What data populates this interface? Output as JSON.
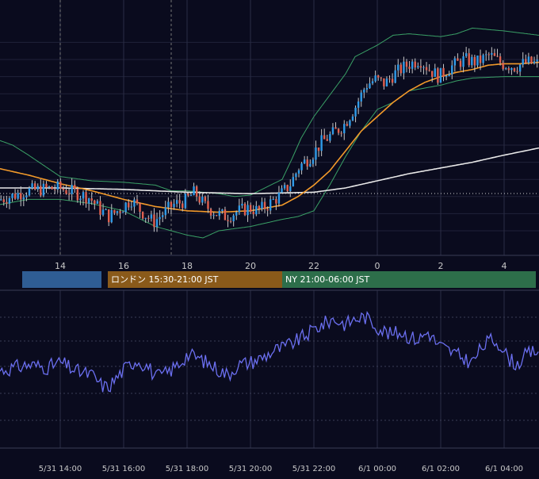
{
  "colors": {
    "background": "#0a0b1e",
    "grid": "#2a2d45",
    "bull": "#2f9be8",
    "bear": "#e0604f",
    "wick": "#c7c7c7",
    "ma_short": "#f39a2a",
    "ma_long": "#e8e8e8",
    "bollinger": "#3aa066",
    "rsi": "#6b6ff0",
    "axis_text": "#c8c8c8"
  },
  "sessions": [
    {
      "name": "tokyo",
      "label": "",
      "color": "#2f5d94",
      "from_h": 12.8,
      "to_h": 15.3
    },
    {
      "name": "london",
      "label": "ロンドン 15:30-21:00 JST",
      "color": "#8a5a1a",
      "from_h": 15.5,
      "to_h": 21.0
    },
    {
      "name": "ny",
      "label": "NY 21:00-06:00 JST",
      "color": "#2d6e4a",
      "from_h": 21.0,
      "to_h": 29.0
    }
  ],
  "chart_data": [
    {
      "type": "line",
      "title": "",
      "xlabel": "",
      "ylabel": "",
      "x_axis": {
        "start_time": "5/31 12:00",
        "end_time": "6/1 05:30",
        "tick_labels": [
          "14",
          "16",
          "18",
          "20",
          "22",
          "0",
          "2",
          "4"
        ],
        "tick_hours": [
          14,
          16,
          18,
          20,
          22,
          24,
          26,
          28
        ]
      },
      "ylim": [
        0,
        100
      ],
      "grid": true,
      "series": [
        {
          "key": "price",
          "kind": "candles",
          "anchors": [
            [
              12,
              51
            ],
            [
              12.5,
              54
            ],
            [
              13,
              58
            ],
            [
              13.5,
              59
            ],
            [
              14,
              60
            ],
            [
              14.5,
              57
            ],
            [
              15,
              53
            ],
            [
              15.3,
              45
            ],
            [
              15.6,
              40
            ],
            [
              16,
              46
            ],
            [
              16.3,
              52
            ],
            [
              16.6,
              44
            ],
            [
              17,
              36
            ],
            [
              17.3,
              42
            ],
            [
              17.6,
              48
            ],
            [
              18,
              51
            ],
            [
              18.3,
              57
            ],
            [
              18.6,
              48
            ],
            [
              19,
              42
            ],
            [
              19.3,
              40
            ],
            [
              19.6,
              43
            ],
            [
              20,
              46
            ],
            [
              20.3,
              44
            ],
            [
              20.6,
              48
            ],
            [
              21,
              55
            ],
            [
              21.3,
              62
            ],
            [
              21.6,
              75
            ],
            [
              22,
              83
            ],
            [
              22.3,
              92
            ],
            [
              22.6,
              97
            ],
            [
              23,
              104
            ],
            [
              23.4,
              118
            ],
            [
              23.7,
              132
            ],
            [
              24,
              136
            ],
            [
              24.3,
              133
            ],
            [
              24.6,
              140
            ],
            [
              25,
              146
            ],
            [
              25.4,
              150
            ],
            [
              25.7,
              143
            ],
            [
              26,
              138
            ],
            [
              26.4,
              145
            ],
            [
              26.8,
              150
            ],
            [
              27.2,
              148
            ],
            [
              27.6,
              153
            ],
            [
              28,
              147
            ],
            [
              28.4,
              145
            ],
            [
              28.8,
              148
            ],
            [
              29.1,
              147
            ]
          ]
        },
        {
          "key": "ma_short",
          "kind": "line",
          "anchors": [
            [
              12,
              74
            ],
            [
              13,
              69
            ],
            [
              14,
              63
            ],
            [
              15,
              58
            ],
            [
              16,
              52
            ],
            [
              17,
              47
            ],
            [
              18,
              44
            ],
            [
              19,
              43
            ],
            [
              20,
              44
            ],
            [
              21,
              48
            ],
            [
              21.5,
              54
            ],
            [
              22,
              62
            ],
            [
              22.5,
              72
            ],
            [
              23,
              86
            ],
            [
              23.5,
              100
            ],
            [
              24,
              110
            ],
            [
              24.5,
              120
            ],
            [
              25,
              128
            ],
            [
              25.5,
              134
            ],
            [
              26,
              138
            ],
            [
              26.5,
              141
            ],
            [
              27,
              143
            ],
            [
              27.5,
              146
            ],
            [
              28,
              147
            ],
            [
              28.5,
              147
            ],
            [
              29.1,
              148
            ]
          ]
        },
        {
          "key": "ma_long",
          "kind": "line",
          "anchors": [
            [
              12,
              60
            ],
            [
              14,
              60
            ],
            [
              16,
              59
            ],
            [
              18,
              57
            ],
            [
              20,
              56
            ],
            [
              22,
              57
            ],
            [
              23,
              60
            ],
            [
              24,
              65
            ],
            [
              25,
              70
            ],
            [
              26,
              74
            ],
            [
              27,
              78
            ],
            [
              28,
              83
            ],
            [
              29.1,
              88
            ]
          ]
        },
        {
          "key": "bb_upper",
          "kind": "line",
          "anchors": [
            [
              12,
              94
            ],
            [
              12.5,
              90
            ],
            [
              13,
              83
            ],
            [
              14,
              68
            ],
            [
              15,
              65
            ],
            [
              16,
              64
            ],
            [
              17,
              62
            ],
            [
              17.5,
              58
            ],
            [
              18,
              58
            ],
            [
              19,
              56
            ],
            [
              19.5,
              54
            ],
            [
              20,
              55
            ],
            [
              21,
              66
            ],
            [
              21.3,
              80
            ],
            [
              21.6,
              95
            ],
            [
              22,
              110
            ],
            [
              22.5,
              125
            ],
            [
              23,
              140
            ],
            [
              23.3,
              152
            ],
            [
              24,
              160
            ],
            [
              24.5,
              167
            ],
            [
              25,
              168
            ],
            [
              26,
              166
            ],
            [
              26.5,
              168
            ],
            [
              27,
              172
            ],
            [
              28,
              170
            ],
            [
              29.1,
              167
            ]
          ]
        },
        {
          "key": "bb_lower",
          "kind": "line",
          "anchors": [
            [
              12,
              48
            ],
            [
              13,
              52
            ],
            [
              14,
              52
            ],
            [
              15,
              49
            ],
            [
              16,
              44
            ],
            [
              17,
              33
            ],
            [
              18,
              27
            ],
            [
              18.5,
              25
            ],
            [
              19,
              30
            ],
            [
              20,
              33
            ],
            [
              21,
              38
            ],
            [
              21.5,
              40
            ],
            [
              22,
              44
            ],
            [
              22.5,
              62
            ],
            [
              23,
              82
            ],
            [
              23.5,
              100
            ],
            [
              24,
              115
            ],
            [
              24.5,
              120
            ],
            [
              25,
              128
            ],
            [
              26,
              132
            ],
            [
              26.5,
              135
            ],
            [
              27,
              137
            ],
            [
              28,
              138
            ],
            [
              29.1,
              138
            ]
          ]
        },
        {
          "key": "rsi",
          "kind": "line",
          "anchors": [
            [
              12,
              45
            ],
            [
              13,
              50
            ],
            [
              13.6,
              48
            ],
            [
              14,
              52
            ],
            [
              14.5,
              45
            ],
            [
              15,
              42
            ],
            [
              15.3,
              34
            ],
            [
              15.5,
              32
            ],
            [
              16,
              46
            ],
            [
              16.4,
              54
            ],
            [
              16.8,
              48
            ],
            [
              17,
              40
            ],
            [
              17.4,
              44
            ],
            [
              17.8,
              52
            ],
            [
              18,
              58
            ],
            [
              18.3,
              56
            ],
            [
              18.6,
              52
            ],
            [
              19,
              46
            ],
            [
              19.3,
              42
            ],
            [
              19.6,
              50
            ],
            [
              20,
              52
            ],
            [
              20.4,
              56
            ],
            [
              20.8,
              62
            ],
            [
              21,
              63
            ],
            [
              21.4,
              68
            ],
            [
              21.8,
              74
            ],
            [
              22,
              78
            ],
            [
              22.3,
              82
            ],
            [
              22.6,
              86
            ],
            [
              23,
              82
            ],
            [
              23.3,
              86
            ],
            [
              23.6,
              88
            ],
            [
              24,
              80
            ],
            [
              24.4,
              74
            ],
            [
              24.8,
              76
            ],
            [
              25,
              72
            ],
            [
              25.3,
              70
            ],
            [
              25.6,
              76
            ],
            [
              25.9,
              66
            ],
            [
              26.2,
              62
            ],
            [
              26.5,
              58
            ],
            [
              26.8,
              54
            ],
            [
              27,
              52
            ],
            [
              27.3,
              64
            ],
            [
              27.6,
              70
            ],
            [
              27.9,
              66
            ],
            [
              28.1,
              56
            ],
            [
              28.4,
              50
            ],
            [
              28.7,
              58
            ],
            [
              29.1,
              62
            ]
          ]
        }
      ],
      "levels": {
        "reference_dotted": 50
      }
    }
  ],
  "bottom_axis_labels": [
    "5/31 14:00",
    "5/31 16:00",
    "5/31 18:00",
    "5/31 20:00",
    "5/31 22:00",
    "6/1 00:00",
    "6/1 02:00",
    "6/1 04:00"
  ]
}
